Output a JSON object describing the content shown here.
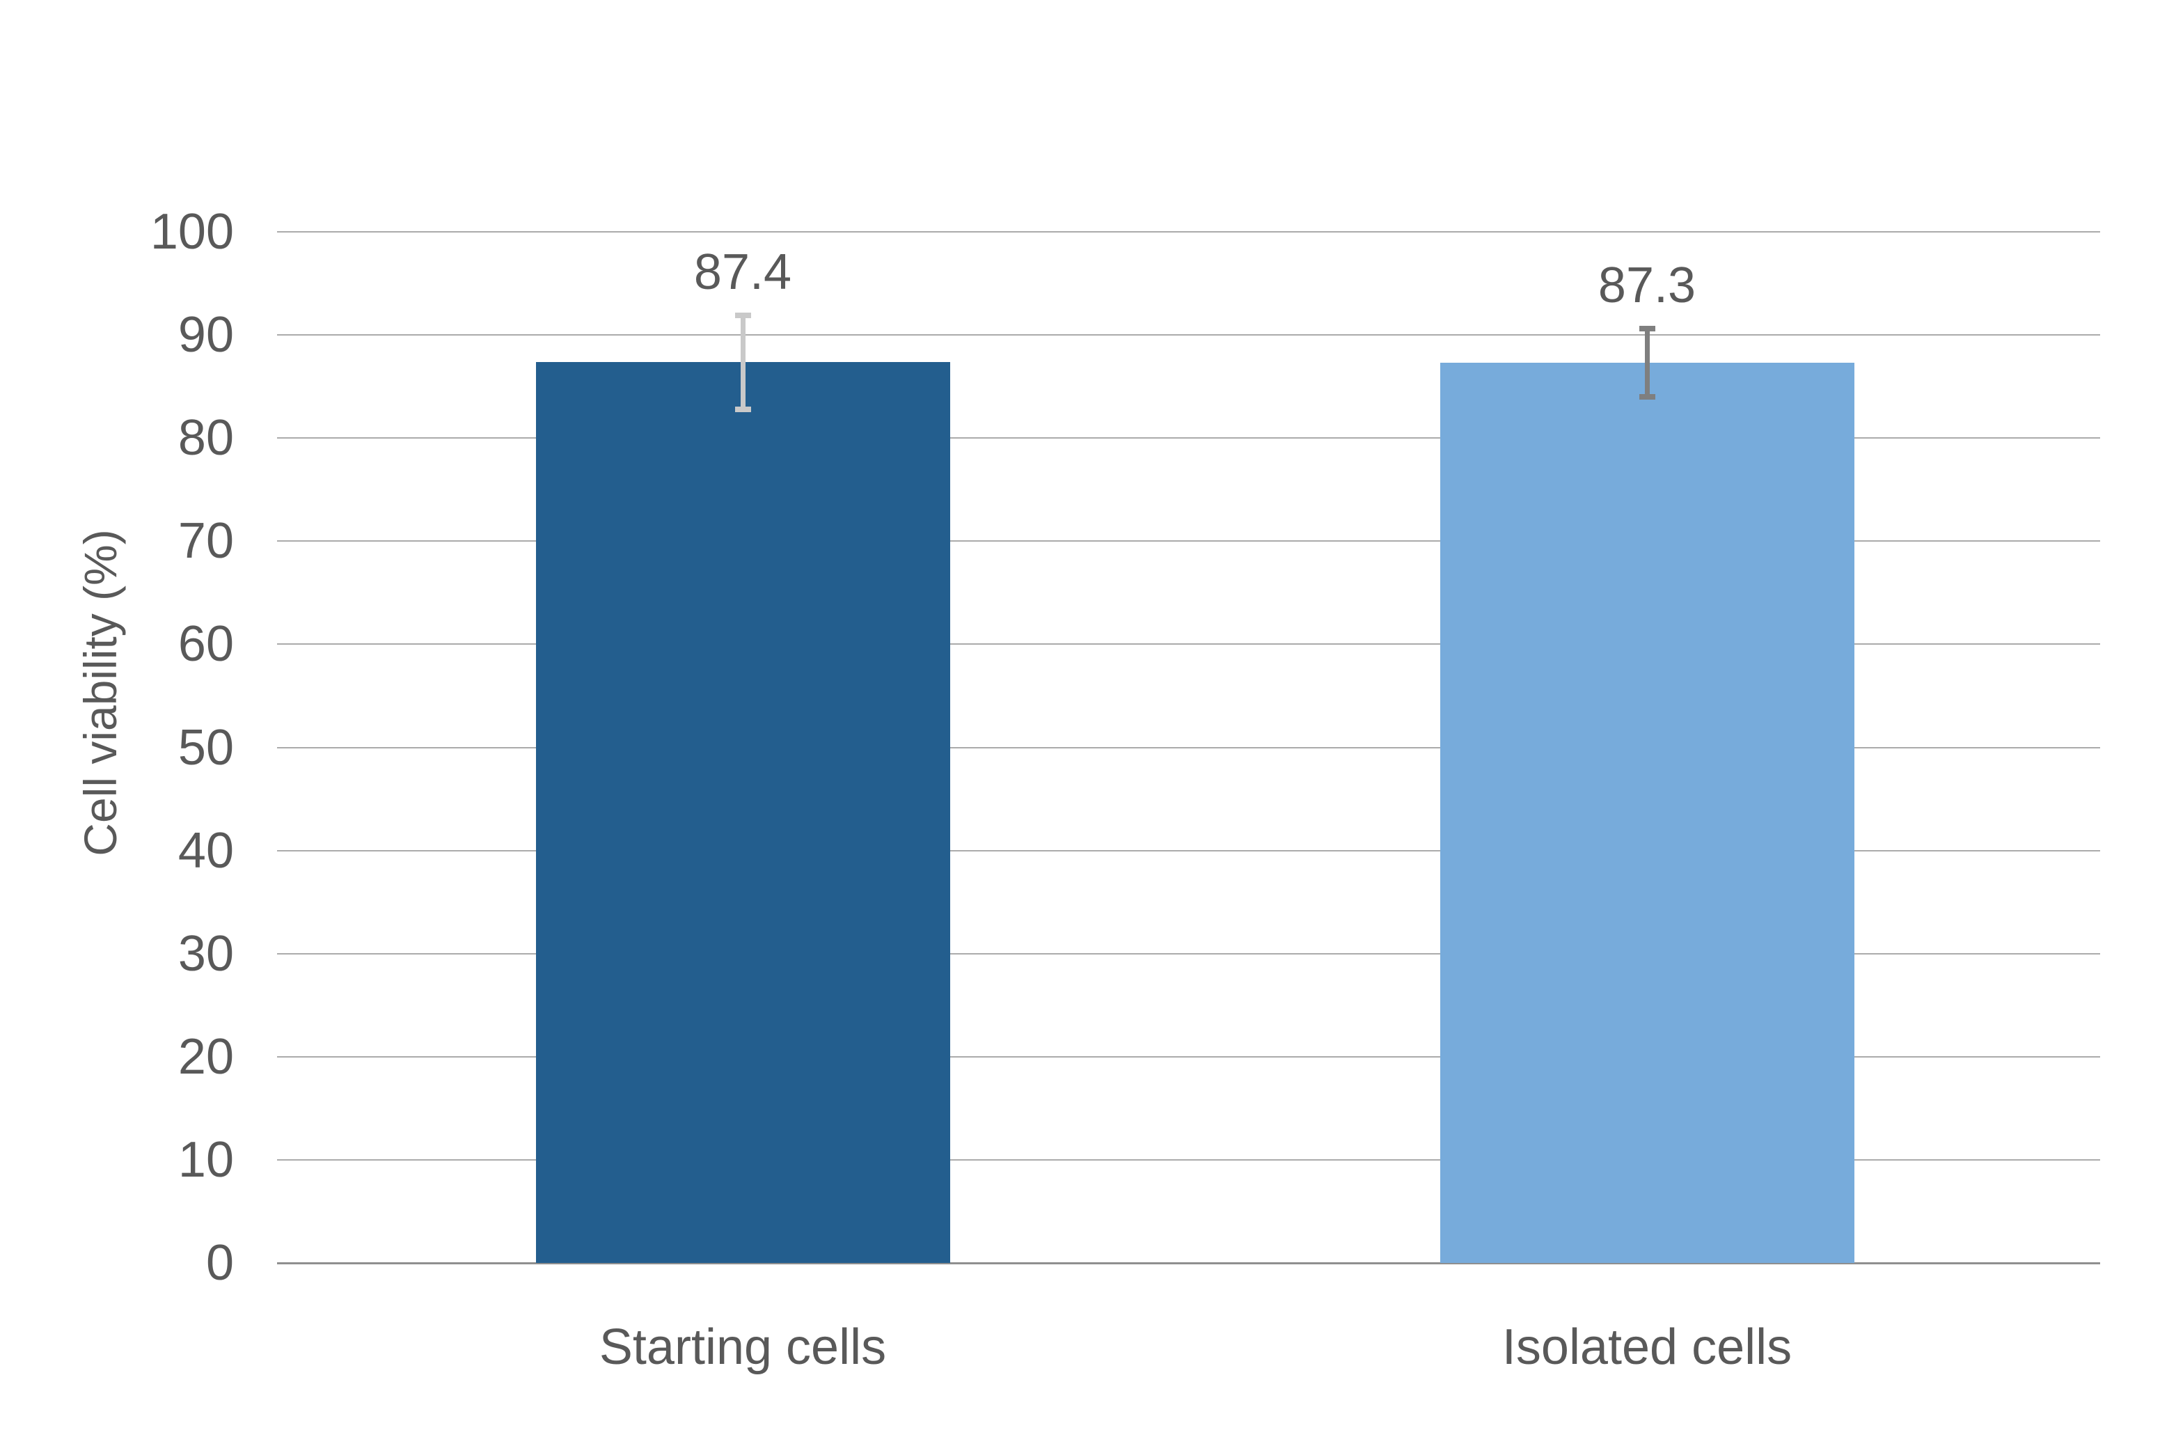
{
  "chart_data": {
    "type": "bar",
    "title": "",
    "xlabel": "",
    "ylabel": "Cell viability (%)",
    "categories": [
      "Starting cells",
      "Isolated cells"
    ],
    "values": [
      87.4,
      87.3
    ],
    "value_label_texts": [
      "87.4",
      "87.3"
    ],
    "errors_plus": [
      4.5,
      3.3
    ],
    "errors_minus": [
      4.6,
      3.3
    ],
    "ylim": [
      0,
      100
    ],
    "yticks": [
      0,
      10,
      20,
      30,
      40,
      50,
      60,
      70,
      80,
      90,
      100
    ],
    "grid": "horizontal",
    "legend_position": "none",
    "bar_colors": [
      "#235E8E",
      "#77ABDB"
    ],
    "error_bar_colors": [
      "#C9C9C9",
      "#7F7F7F"
    ],
    "text_color": "#595959",
    "gridline_color": "#ABABAB",
    "baseline_color": "#8F8F8F",
    "background_color": "#FFFFFF"
  }
}
